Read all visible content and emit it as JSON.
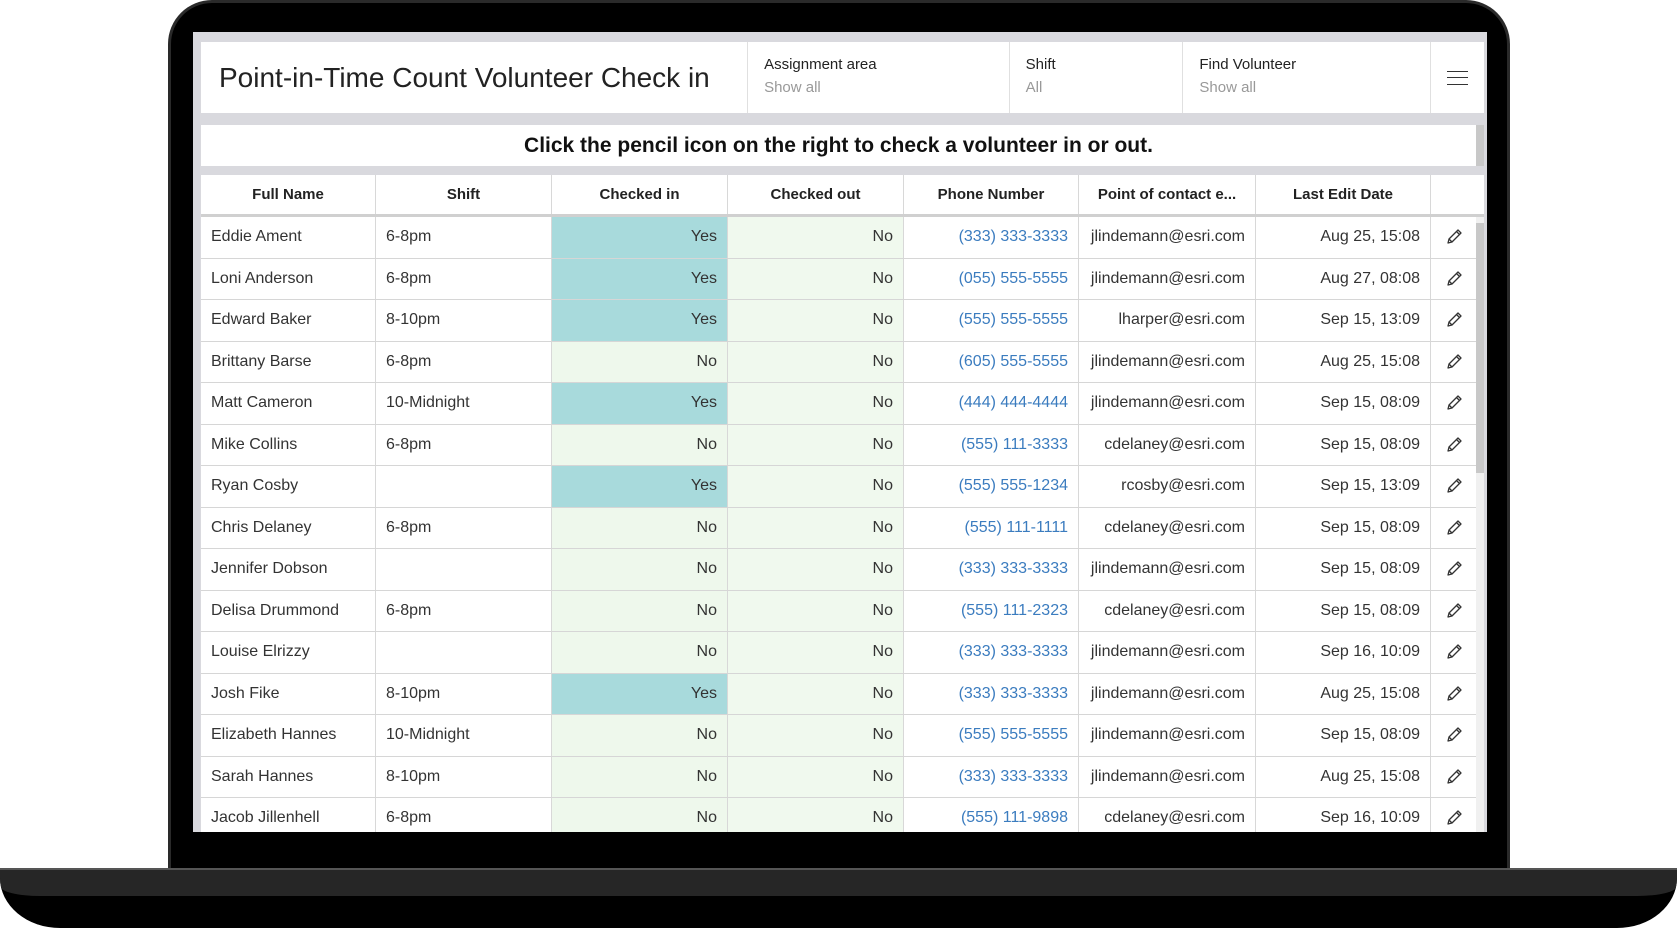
{
  "header": {
    "title": "Point-in-Time Count Volunteer Check in",
    "filters": [
      {
        "label": "Assignment area",
        "value": "Show all"
      },
      {
        "label": "Shift",
        "value": "All"
      },
      {
        "label": "Find Volunteer",
        "value": "Show all"
      }
    ]
  },
  "banner": "Click the pencil icon on the right to check a volunteer in or out.",
  "columns": [
    "Full Name",
    "Shift",
    "Checked in",
    "Checked out",
    "Phone Number",
    "Point of contact e...",
    "Last Edit Date"
  ],
  "rows": [
    [
      "Eddie Ament",
      "6-8pm",
      "Yes",
      "No",
      "(333) 333-3333",
      "jlindemann@esri.com",
      "Aug 25, 15:08"
    ],
    [
      "Loni Anderson",
      "6-8pm",
      "Yes",
      "No",
      "(055) 555-5555",
      "jlindemann@esri.com",
      "Aug 27, 08:08"
    ],
    [
      "Edward Baker",
      "8-10pm",
      "Yes",
      "No",
      "(555) 555-5555",
      "lharper@esri.com",
      "Sep 15, 13:09"
    ],
    [
      "Brittany Barse",
      "6-8pm",
      "No",
      "No",
      "(605) 555-5555",
      "jlindemann@esri.com",
      "Aug 25, 15:08"
    ],
    [
      "Matt Cameron",
      "10-Midnight",
      "Yes",
      "No",
      "(444) 444-4444",
      "jlindemann@esri.com",
      "Sep 15, 08:09"
    ],
    [
      "Mike Collins",
      "6-8pm",
      "No",
      "No",
      "(555) 111-3333",
      "cdelaney@esri.com",
      "Sep 15, 08:09"
    ],
    [
      "Ryan Cosby",
      "",
      "Yes",
      "No",
      "(555) 555-1234",
      "rcosby@esri.com",
      "Sep 15, 13:09"
    ],
    [
      "Chris Delaney",
      "6-8pm",
      "No",
      "No",
      "(555) 111-1111",
      "cdelaney@esri.com",
      "Sep 15, 08:09"
    ],
    [
      "Jennifer Dobson",
      "",
      "No",
      "No",
      "(333) 333-3333",
      "jlindemann@esri.com",
      "Sep 15, 08:09"
    ],
    [
      "Delisa Drummond",
      "6-8pm",
      "No",
      "No",
      "(555) 111-2323",
      "cdelaney@esri.com",
      "Sep 15, 08:09"
    ],
    [
      "Louise Elrizzy",
      "",
      "No",
      "No",
      "(333) 333-3333",
      "jlindemann@esri.com",
      "Sep 16, 10:09"
    ],
    [
      "Josh Fike",
      "8-10pm",
      "Yes",
      "No",
      "(333) 333-3333",
      "jlindemann@esri.com",
      "Aug 25, 15:08"
    ],
    [
      "Elizabeth Hannes",
      "10-Midnight",
      "No",
      "No",
      "(555) 555-5555",
      "jlindemann@esri.com",
      "Sep 15, 08:09"
    ],
    [
      "Sarah Hannes",
      "8-10pm",
      "No",
      "No",
      "(333) 333-3333",
      "jlindemann@esri.com",
      "Aug 25, 15:08"
    ],
    [
      "Jacob Jillenhell",
      "6-8pm",
      "No",
      "No",
      "(555) 111-9898",
      "cdelaney@esri.com",
      "Sep 16, 10:09"
    ]
  ],
  "colors": {
    "checked_in_yes": "#a8dadc",
    "checked_in_no": "#eef8ec",
    "checked_out": "#f0f9ee",
    "phone_link": "#3b7cbf"
  },
  "icons": {
    "menu": "hamburger-menu-icon",
    "edit": "pencil-icon"
  }
}
